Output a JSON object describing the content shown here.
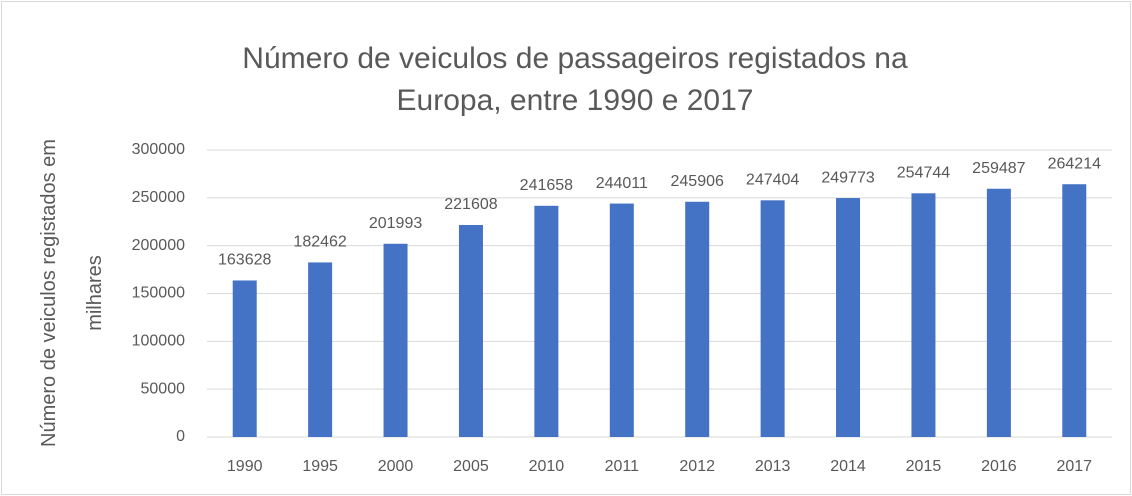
{
  "chart_data": {
    "type": "bar",
    "title": "Número de veiculos de passageiros registados na Europa, entre 1990 e 2017",
    "y_label": "Número de veiculos registados em milhares",
    "categories": [
      "1990",
      "1995",
      "2000",
      "2005",
      "2010",
      "2011",
      "2012",
      "2013",
      "2014",
      "2015",
      "2016",
      "2017"
    ],
    "values": [
      163628,
      182462,
      201993,
      221608,
      241658,
      244011,
      245906,
      247404,
      249773,
      254744,
      259487,
      264214
    ],
    "color": "#4472c4",
    "ylim": [
      0,
      300000
    ],
    "yticks": [
      0,
      50000,
      100000,
      150000,
      200000,
      250000,
      300000
    ],
    "grid": true
  }
}
